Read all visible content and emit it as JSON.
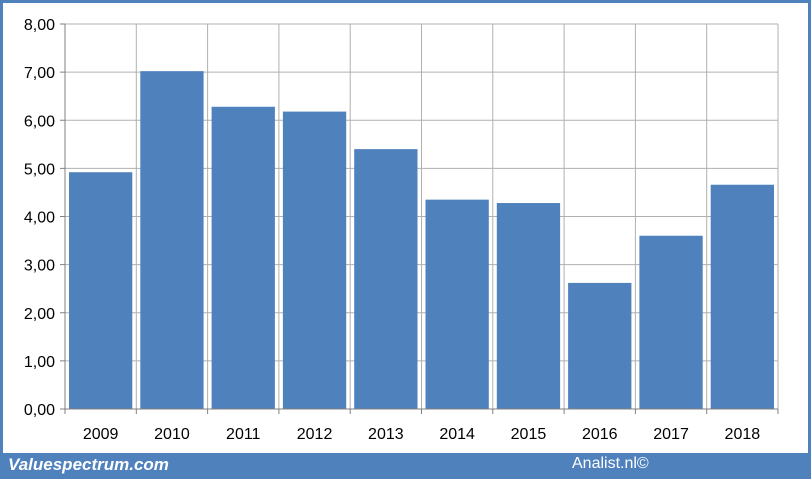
{
  "footer": {
    "brand": "Valuespectrum.com",
    "credit": "Analist.nl©"
  },
  "colors": {
    "bar": "#4f81bd",
    "frame": "#4f81bd",
    "grid": "#b0b0b0"
  },
  "chart_data": {
    "type": "bar",
    "categories": [
      "2009",
      "2010",
      "2011",
      "2012",
      "2013",
      "2014",
      "2015",
      "2016",
      "2017",
      "2018"
    ],
    "values": [
      4.92,
      7.02,
      6.28,
      6.18,
      5.4,
      4.35,
      4.28,
      2.62,
      3.6,
      4.66
    ],
    "ylim": [
      0,
      8
    ],
    "yticks": [
      "0,00",
      "1,00",
      "2,00",
      "3,00",
      "4,00",
      "5,00",
      "6,00",
      "7,00",
      "8,00"
    ],
    "grid": true,
    "legend": "none"
  }
}
